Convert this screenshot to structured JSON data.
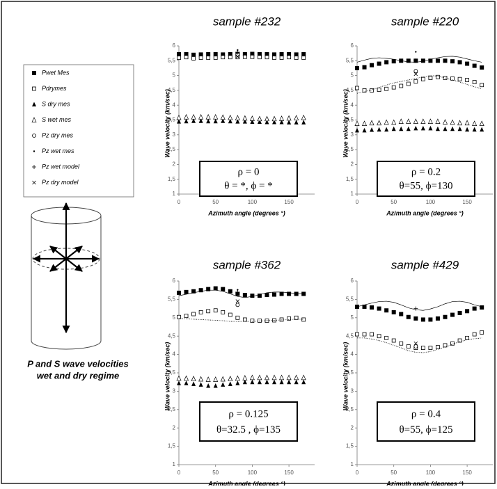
{
  "legend": [
    {
      "label": "Pwet Mes",
      "marker": "filled-square"
    },
    {
      "label": "Pdrymes",
      "marker": "open-square"
    },
    {
      "label": "S dry mes",
      "marker": "filled-triangle"
    },
    {
      "label": "S wet mes",
      "marker": "open-triangle"
    },
    {
      "label": "Pz dry mes",
      "marker": "open-circle"
    },
    {
      "label": "Pz wet mes",
      "marker": "dot"
    },
    {
      "label": "Pz wet model",
      "marker": "plus"
    },
    {
      "label": "Pz dry model",
      "marker": "cross"
    }
  ],
  "caption": [
    "P and S wave velocities",
    "wet and dry regime"
  ],
  "chart_data": [
    {
      "type": "scatter",
      "title": "sample #232",
      "ylabel": "Wave velocity (km/sec)",
      "xlabel": "Azimuth angle (degrees °)",
      "color": "#000000",
      "annotation": [
        "ρ = 0",
        "θ = *, ϕ = *"
      ],
      "xlim": [
        0,
        185
      ],
      "xticks": [
        0,
        50,
        100,
        150
      ],
      "ylim": [
        1,
        6
      ],
      "yticks": [
        1,
        {
          "value": 1.5,
          "label": "1,5"
        },
        2,
        {
          "value": 2.5,
          "label": "2,5"
        },
        3,
        {
          "value": 3.5,
          "label": "3,5"
        },
        4,
        {
          "value": 4.5,
          "label": "4,5"
        },
        5,
        {
          "value": 5.5,
          "label": "5,5"
        },
        6
      ],
      "x": [
        0,
        10,
        20,
        30,
        40,
        50,
        60,
        70,
        80,
        90,
        100,
        110,
        120,
        130,
        140,
        150,
        160,
        170
      ],
      "series": [
        {
          "marker": "filled-square",
          "values": [
            5.72,
            5.72,
            5.7,
            5.71,
            5.72,
            5.72,
            5.71,
            5.72,
            5.73,
            5.72,
            5.73,
            5.72,
            5.72,
            5.71,
            5.72,
            5.72,
            5.71,
            5.72
          ]
        },
        {
          "marker": "open-square",
          "values": [
            5.6,
            5.62,
            5.58,
            5.6,
            5.6,
            5.6,
            5.62,
            5.62,
            5.62,
            5.63,
            5.63,
            5.62,
            5.62,
            5.6,
            5.6,
            5.62,
            5.6,
            5.6
          ]
        },
        {
          "marker": "filled-triangle",
          "values": [
            3.45,
            3.46,
            3.47,
            3.47,
            3.46,
            3.46,
            3.47,
            3.46,
            3.45,
            3.45,
            3.44,
            3.44,
            3.43,
            3.43,
            3.43,
            3.42,
            3.42,
            3.42
          ]
        },
        {
          "marker": "open-triangle",
          "values": [
            3.58,
            3.6,
            3.6,
            3.6,
            3.6,
            3.6,
            3.59,
            3.58,
            3.57,
            3.56,
            3.55,
            3.54,
            3.54,
            3.54,
            3.55,
            3.56,
            3.57,
            3.58
          ]
        },
        {
          "marker": "open-circle",
          "x": [
            80
          ],
          "values": [
            5.7
          ]
        },
        {
          "marker": "dot",
          "x": [
            80
          ],
          "values": [
            5.86
          ]
        },
        {
          "marker": "plus",
          "x": [
            80
          ],
          "values": [
            5.78
          ]
        },
        {
          "marker": "cross",
          "x": [
            80
          ],
          "values": [
            5.64
          ]
        }
      ]
    },
    {
      "type": "scatter",
      "title": "sample #220",
      "ylabel": "Wave velocity (km/sec)",
      "xlabel": "Azimuth angle (degrees °)",
      "color": "#000000",
      "annotation": [
        "ρ = 0.2",
        "θ=55, ϕ=130"
      ],
      "xlim": [
        0,
        185
      ],
      "xticks": [
        0,
        50,
        100,
        150
      ],
      "ylim": [
        1,
        6
      ],
      "yticks": [
        1,
        {
          "value": 1.5,
          "label": "1,5"
        },
        2,
        {
          "value": 2.5,
          "label": "2,5"
        },
        3,
        {
          "value": 3.5,
          "label": "3,5"
        },
        4,
        {
          "value": 4.5,
          "label": "4,5"
        },
        5,
        {
          "value": 5.5,
          "label": "5,5"
        },
        6
      ],
      "x": [
        0,
        10,
        20,
        30,
        40,
        50,
        60,
        70,
        80,
        90,
        100,
        110,
        120,
        130,
        140,
        150,
        160,
        170
      ],
      "series": [
        {
          "marker": "filled-square",
          "values": [
            5.25,
            5.28,
            5.35,
            5.4,
            5.45,
            5.48,
            5.5,
            5.5,
            5.5,
            5.5,
            5.5,
            5.5,
            5.5,
            5.48,
            5.45,
            5.4,
            5.33,
            5.27
          ]
        },
        {
          "marker": "open-square",
          "values": [
            4.58,
            4.5,
            4.5,
            4.52,
            4.55,
            4.6,
            4.65,
            4.72,
            4.8,
            4.88,
            4.92,
            4.95,
            4.92,
            4.9,
            4.88,
            4.85,
            4.78,
            4.68
          ]
        },
        {
          "marker": "filled-triangle",
          "values": [
            3.15,
            3.15,
            3.17,
            3.18,
            3.18,
            3.2,
            3.2,
            3.2,
            3.22,
            3.22,
            3.22,
            3.2,
            3.2,
            3.2,
            3.2,
            3.18,
            3.18,
            3.18
          ]
        },
        {
          "marker": "open-triangle",
          "values": [
            3.38,
            3.38,
            3.4,
            3.4,
            3.42,
            3.42,
            3.45,
            3.45,
            3.45,
            3.45,
            3.45,
            3.45,
            3.43,
            3.42,
            3.4,
            3.4,
            3.38,
            3.38
          ]
        },
        {
          "marker": "open-circle",
          "x": [
            80
          ],
          "values": [
            5.15
          ]
        },
        {
          "marker": "dot",
          "x": [
            80
          ],
          "values": [
            5.8
          ]
        },
        {
          "marker": "plus",
          "x": [
            80
          ],
          "values": [
            5.5
          ]
        },
        {
          "marker": "cross",
          "x": [
            80
          ],
          "values": [
            5.05
          ]
        },
        {
          "marker": "line-solid",
          "values": [
            5.45,
            5.52,
            5.58,
            5.6,
            5.58,
            5.55,
            5.5,
            5.46,
            5.45,
            5.48,
            5.55,
            5.6,
            5.64,
            5.65,
            5.62,
            5.56,
            5.5,
            5.45
          ]
        },
        {
          "marker": "line-dotted",
          "values": [
            4.4,
            4.45,
            4.52,
            4.6,
            4.68,
            4.75,
            4.8,
            4.85,
            4.9,
            4.96,
            5.0,
            4.98,
            4.92,
            4.85,
            4.78,
            4.7,
            4.62,
            4.55
          ]
        }
      ]
    },
    {
      "type": "scatter",
      "title": "sample #362",
      "ylabel": "Wave velocity (km/sec)",
      "xlabel": "Azimuth angle (degrees °)",
      "color": "#000000",
      "annotation": [
        "ρ = 0.125",
        "θ=32.5 , ϕ=135"
      ],
      "xlim": [
        0,
        185
      ],
      "xticks": [
        0,
        50,
        100,
        150
      ],
      "ylim": [
        1,
        6
      ],
      "yticks": [
        1,
        {
          "value": 1.5,
          "label": "1,5"
        },
        2,
        {
          "value": 2.5,
          "label": "2,5"
        },
        3,
        {
          "value": 3.5,
          "label": "3,5"
        },
        4,
        {
          "value": 4.5,
          "label": "4,5"
        },
        5,
        {
          "value": 5.5,
          "label": "5,5"
        },
        6
      ],
      "x": [
        0,
        10,
        20,
        30,
        40,
        50,
        60,
        70,
        80,
        90,
        100,
        110,
        120,
        130,
        140,
        150,
        160,
        170
      ],
      "series": [
        {
          "marker": "filled-square",
          "values": [
            5.68,
            5.7,
            5.72,
            5.75,
            5.78,
            5.8,
            5.78,
            5.72,
            5.65,
            5.62,
            5.6,
            5.6,
            5.62,
            5.63,
            5.65,
            5.65,
            5.65,
            5.65
          ]
        },
        {
          "marker": "open-square",
          "values": [
            5.02,
            5.05,
            5.1,
            5.15,
            5.18,
            5.2,
            5.15,
            5.08,
            5.0,
            4.95,
            4.92,
            4.92,
            4.92,
            4.93,
            4.95,
            4.98,
            5.0,
            4.95
          ]
        },
        {
          "marker": "filled-triangle",
          "values": [
            3.22,
            3.22,
            3.2,
            3.18,
            3.15,
            3.15,
            3.18,
            3.2,
            3.22,
            3.25,
            3.25,
            3.25,
            3.25,
            3.25,
            3.25,
            3.25,
            3.25,
            3.25
          ]
        },
        {
          "marker": "open-triangle",
          "values": [
            3.35,
            3.35,
            3.34,
            3.33,
            3.32,
            3.32,
            3.33,
            3.34,
            3.35,
            3.36,
            3.37,
            3.37,
            3.37,
            3.37,
            3.37,
            3.37,
            3.37,
            3.37
          ]
        },
        {
          "marker": "open-circle",
          "x": [
            80
          ],
          "values": [
            5.35
          ]
        },
        {
          "marker": "dot",
          "x": [
            80
          ],
          "values": [
            5.76
          ]
        },
        {
          "marker": "plus",
          "x": [
            80
          ],
          "values": [
            5.7
          ]
        },
        {
          "marker": "cross",
          "x": [
            80
          ],
          "values": [
            5.45
          ]
        },
        {
          "marker": "line-solid",
          "values": [
            5.6,
            5.64,
            5.68,
            5.72,
            5.75,
            5.75,
            5.72,
            5.65,
            5.58,
            5.55,
            5.58,
            5.63,
            5.68,
            5.7,
            5.7,
            5.68,
            5.66,
            5.65
          ]
        },
        {
          "marker": "line-dotted",
          "values": [
            4.98,
            4.97,
            4.96,
            4.95,
            4.94,
            4.93,
            4.92,
            4.9,
            4.9,
            4.9,
            4.9,
            4.91,
            4.92,
            4.93,
            4.94,
            4.95,
            4.96,
            4.96
          ]
        }
      ]
    },
    {
      "type": "scatter",
      "title": "sample #429",
      "ylabel": "Wave velocity (km/sec)",
      "xlabel": "Azimuth angle (degrees °)",
      "color": "#000000",
      "annotation": [
        "ρ = 0.4",
        "θ=55, ϕ=125"
      ],
      "xlim": [
        0,
        185
      ],
      "xticks": [
        0,
        50,
        100,
        150
      ],
      "ylim": [
        1,
        6
      ],
      "yticks": [
        1,
        {
          "value": 1.5,
          "label": "1,5"
        },
        2,
        {
          "value": 2.5,
          "label": "2,5"
        },
        3,
        {
          "value": 3.5,
          "label": "3,5"
        },
        4,
        {
          "value": 4.5,
          "label": "4,5"
        },
        5,
        {
          "value": 5.5,
          "label": "5,5"
        },
        6
      ],
      "x": [
        0,
        10,
        20,
        30,
        40,
        50,
        60,
        70,
        80,
        90,
        100,
        110,
        120,
        130,
        140,
        150,
        160,
        170
      ],
      "series": [
        {
          "marker": "filled-square",
          "values": [
            5.3,
            5.3,
            5.28,
            5.25,
            5.2,
            5.15,
            5.1,
            5.02,
            4.98,
            4.95,
            4.95,
            4.98,
            5.02,
            5.08,
            5.13,
            5.18,
            5.25,
            5.28
          ]
        },
        {
          "marker": "open-square",
          "values": [
            4.55,
            4.55,
            4.55,
            4.5,
            4.45,
            4.38,
            4.3,
            4.22,
            4.18,
            4.18,
            4.18,
            4.2,
            4.25,
            4.3,
            4.38,
            4.45,
            4.55,
            4.6
          ]
        },
        {
          "marker": "open-circle",
          "x": [
            80
          ],
          "values": [
            4.22
          ]
        },
        {
          "marker": "plus",
          "x": [
            80
          ],
          "values": [
            5.25
          ]
        },
        {
          "marker": "cross",
          "x": [
            80
          ],
          "values": [
            4.3
          ]
        },
        {
          "marker": "line-solid",
          "values": [
            5.3,
            5.35,
            5.4,
            5.44,
            5.45,
            5.42,
            5.35,
            5.27,
            5.22,
            5.2,
            5.24,
            5.3,
            5.38,
            5.44,
            5.45,
            5.42,
            5.35,
            5.3
          ]
        },
        {
          "marker": "line-dotted",
          "values": [
            4.45,
            4.45,
            4.42,
            4.38,
            4.32,
            4.25,
            4.18,
            4.1,
            4.06,
            4.05,
            4.08,
            4.14,
            4.2,
            4.28,
            4.35,
            4.4,
            4.43,
            4.45
          ]
        }
      ]
    }
  ]
}
